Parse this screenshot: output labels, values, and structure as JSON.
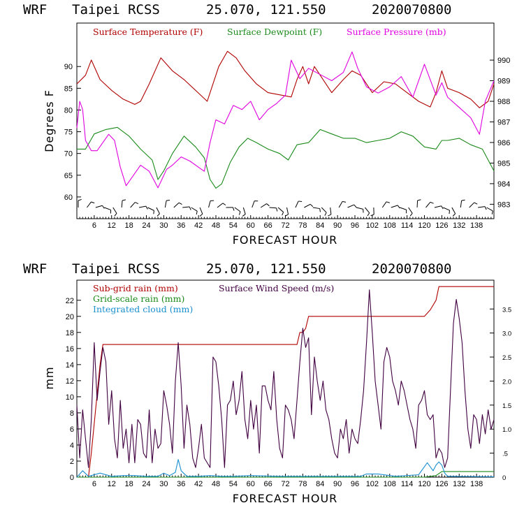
{
  "chart_data": [
    {
      "type": "line",
      "header": {
        "model": "WRF",
        "station": "Taipei RCSS",
        "coords": "25.070, 121.550",
        "run": "2020070800"
      },
      "xlabel": "FORECAST HOUR",
      "ylabel": "Degrees F",
      "xlim": [
        0,
        144
      ],
      "ylim": [
        55,
        100
      ],
      "y2lim": [
        982.3,
        991.8
      ],
      "x_ticks": [
        6,
        12,
        18,
        24,
        30,
        36,
        42,
        48,
        54,
        60,
        66,
        72,
        78,
        84,
        90,
        96,
        102,
        108,
        114,
        120,
        126,
        132,
        138
      ],
      "y_ticks": [
        60,
        65,
        70,
        75,
        80,
        85,
        90
      ],
      "y2_ticks": [
        983,
        984,
        985,
        986,
        987,
        988,
        989,
        990
      ],
      "legend": [
        "Surface Temperature (F)",
        "Surface Dewpoint (F)",
        "Surface Pressure (mb)"
      ],
      "colors": {
        "temperature": "#b00000",
        "dewpoint": "#1a8a1a",
        "pressure": "#e000e0",
        "barbs": "#000000"
      },
      "series": [
        {
          "name": "Surface Temperature (F)",
          "axis": "left",
          "x": [
            0,
            3,
            5,
            8,
            12,
            16,
            20,
            22,
            25,
            29,
            33,
            37,
            41,
            45,
            49,
            52,
            55,
            58,
            62,
            66,
            70,
            74,
            76,
            78,
            80,
            82,
            84,
            88,
            92,
            95,
            98,
            102,
            106,
            110,
            114,
            118,
            122,
            124,
            126,
            128,
            132,
            136,
            139,
            142,
            144
          ],
          "values": [
            86,
            88,
            91.5,
            87,
            84.5,
            82.5,
            81.3,
            82,
            86,
            92,
            89,
            87,
            84.5,
            82,
            90,
            93.5,
            92,
            89,
            86,
            84,
            83.5,
            83,
            87,
            90,
            86,
            90,
            88,
            84,
            87,
            89,
            88,
            84,
            86.5,
            86,
            84,
            82,
            80.7,
            84,
            89,
            85,
            84,
            82.5,
            80.5,
            82,
            86
          ]
        },
        {
          "name": "Surface Dewpoint (F)",
          "axis": "left",
          "x": [
            0,
            3,
            6,
            10,
            14,
            18,
            22,
            26,
            28,
            30,
            33,
            37,
            41,
            44,
            46,
            48,
            50,
            53,
            56,
            59,
            62,
            66,
            70,
            73,
            76,
            80,
            84,
            88,
            92,
            96,
            100,
            104,
            108,
            112,
            116,
            120,
            124,
            126,
            128,
            132,
            136,
            140,
            144
          ],
          "values": [
            71,
            71,
            74.5,
            75.5,
            76,
            74,
            71,
            68.5,
            64,
            66,
            70,
            74,
            71.5,
            69,
            64,
            62,
            63,
            68,
            71.5,
            73.5,
            72.5,
            71,
            70,
            68.5,
            72,
            72.5,
            75.5,
            74.5,
            73.5,
            73.5,
            72.5,
            73,
            73.5,
            75,
            74,
            71.5,
            71,
            73,
            73,
            73.5,
            72,
            71,
            66
          ]
        },
        {
          "name": "Surface Pressure (mb)",
          "axis": "right",
          "x": [
            0,
            1,
            2,
            3,
            5,
            7,
            9,
            11,
            13,
            15,
            17,
            19,
            22,
            25,
            28,
            31,
            33,
            36,
            39,
            42,
            44,
            46,
            48,
            51,
            54,
            57,
            60,
            63,
            66,
            69,
            72,
            74,
            77,
            80,
            84,
            88,
            92,
            95,
            97,
            100,
            104,
            108,
            112,
            116,
            120,
            124,
            126,
            128,
            132,
            136,
            139,
            141,
            144
          ],
          "values": [
            986.7,
            988,
            987.6,
            986.1,
            985.6,
            985.6,
            986,
            986.4,
            986.1,
            984.8,
            983.9,
            984.3,
            984.9,
            984.6,
            983.8,
            984.7,
            984.9,
            985.3,
            985.1,
            984.8,
            984.6,
            986,
            987.1,
            986.9,
            987.8,
            987.6,
            988,
            987.1,
            987.6,
            987.9,
            988.3,
            990,
            989.1,
            989.6,
            989.3,
            989,
            989.4,
            990.4,
            989.6,
            988.7,
            988.4,
            988.7,
            989.2,
            988.2,
            989.8,
            988.3,
            988.9,
            988.2,
            987.7,
            987.2,
            986.4,
            988,
            989
          ]
        }
      ],
      "wind_barbs_hours": [
        0,
        3,
        6,
        9,
        12,
        15,
        18,
        21,
        24,
        27,
        30,
        33,
        36,
        39,
        42,
        45,
        48,
        51,
        54,
        57,
        60,
        63,
        66,
        69,
        72,
        75,
        78,
        81,
        84,
        87,
        90,
        93,
        96,
        99,
        102,
        105,
        108,
        111,
        114,
        117,
        120,
        123,
        126,
        129,
        132,
        135,
        138,
        141
      ]
    },
    {
      "type": "line",
      "header": {
        "model": "WRF",
        "station": "Taipei RCSS",
        "coords": "25.070, 121.550",
        "run": "2020070800"
      },
      "xlabel": "FORECAST HOUR",
      "ylabel": "mm",
      "xlim": [
        0,
        144
      ],
      "ylim": [
        0,
        24.5
      ],
      "y2lim": [
        0,
        4.1
      ],
      "x_ticks": [
        6,
        12,
        18,
        24,
        30,
        36,
        42,
        48,
        54,
        60,
        66,
        72,
        78,
        84,
        90,
        96,
        102,
        108,
        114,
        120,
        126,
        132,
        138
      ],
      "y_ticks": [
        0,
        2,
        4,
        6,
        8,
        10,
        12,
        14,
        16,
        18,
        20,
        22
      ],
      "y2_ticks": [
        "0",
        ".5",
        "1.0",
        "1.5",
        "2.0",
        "2.5",
        "3.0",
        "3.5"
      ],
      "legend": [
        "Sub-grid rain (mm)",
        "Surface Wind Speed (m/s)",
        "Grid-scale rain (mm)",
        "Integrated cloud (mm)"
      ],
      "colors": {
        "subgrid": "#b00000",
        "wind": "#400040",
        "gridscale": "#1a8a1a",
        "cloud": "#1a90d0"
      },
      "series": [
        {
          "name": "Sub-grid rain (mm)",
          "axis": "left",
          "x": [
            0,
            4,
            5,
            8,
            9,
            76,
            77,
            78,
            79,
            80,
            81,
            120,
            122,
            124,
            125,
            144
          ],
          "values": [
            0,
            0,
            3,
            14,
            16.5,
            16.5,
            18,
            18,
            18.5,
            20,
            20,
            20,
            20.8,
            22,
            23.7,
            23.7
          ]
        },
        {
          "name": "Grid-scale rain (mm)",
          "axis": "left",
          "x": [
            0,
            120,
            124,
            126,
            144
          ],
          "values": [
            0,
            0,
            0.2,
            0.7,
            0.7
          ]
        },
        {
          "name": "Integrated cloud (mm)",
          "axis": "left",
          "x": [
            0,
            2,
            4,
            8,
            12,
            16,
            20,
            24,
            28,
            30,
            32,
            34,
            35,
            36,
            38,
            42,
            46,
            50,
            54,
            60,
            70,
            80,
            90,
            98,
            100,
            104,
            110,
            118,
            121,
            123,
            124,
            125,
            126,
            127,
            128,
            129,
            144
          ],
          "values": [
            0,
            0.8,
            0.1,
            0.5,
            0.1,
            0.2,
            0.2,
            0.1,
            0.1,
            0.5,
            0.2,
            0.6,
            2.2,
            0.8,
            0.1,
            0.1,
            0.2,
            0.1,
            0.1,
            0.2,
            0.1,
            0.1,
            0.1,
            0.1,
            0.4,
            0.4,
            0.1,
            0.3,
            1.8,
            0.8,
            1.5,
            1.9,
            1.5,
            0.5,
            0.1,
            0.1,
            0.05
          ]
        },
        {
          "name": "Surface Wind Speed (m/s)",
          "axis": "right",
          "x": [
            0,
            1,
            2,
            3,
            4,
            5,
            6,
            7,
            8,
            9,
            10,
            11,
            12,
            13,
            14,
            15,
            16,
            17,
            18,
            19,
            20,
            21,
            22,
            23,
            24,
            25,
            26,
            27,
            28,
            29,
            30,
            31,
            32,
            33,
            34,
            35,
            36,
            37,
            38,
            39,
            40,
            41,
            42,
            43,
            44,
            45,
            46,
            47,
            48,
            49,
            50,
            51,
            52,
            53,
            54,
            55,
            56,
            57,
            58,
            59,
            60,
            61,
            62,
            63,
            64,
            65,
            66,
            67,
            68,
            69,
            70,
            71,
            72,
            73,
            74,
            75,
            76,
            77,
            78,
            79,
            80,
            81,
            82,
            83,
            84,
            85,
            86,
            87,
            88,
            89,
            90,
            91,
            92,
            93,
            94,
            95,
            96,
            97,
            98,
            99,
            100,
            101,
            102,
            103,
            104,
            105,
            106,
            107,
            108,
            109,
            110,
            111,
            112,
            113,
            114,
            115,
            116,
            117,
            118,
            119,
            120,
            121,
            122,
            123,
            124,
            125,
            126,
            127,
            128,
            129,
            130,
            131,
            132,
            133,
            134,
            135,
            136,
            137,
            138,
            139,
            140,
            141,
            142,
            143,
            144
          ],
          "values": [
            1.5,
            0.4,
            1.4,
            0.8,
            0.2,
            1.2,
            2.8,
            1.6,
            2.2,
            2.7,
            2.4,
            1.1,
            1.8,
            0.8,
            0.4,
            1.6,
            0.6,
            1.0,
            0.3,
            1.1,
            0.3,
            1.2,
            1.1,
            0.5,
            0.4,
            1.4,
            0.3,
            1.0,
            0.6,
            0.7,
            1.8,
            1.5,
            1.1,
            0.5,
            2.0,
            2.8,
            1.9,
            0.6,
            1.5,
            1.1,
            0.4,
            0.2,
            0.6,
            1.1,
            0.4,
            0.3,
            0.2,
            2.5,
            2.4,
            1.9,
            1.2,
            0.2,
            1.5,
            1.6,
            2.0,
            1.3,
            1.6,
            2.2,
            1.2,
            0.8,
            1.6,
            1.0,
            1.5,
            0.5,
            1.9,
            1.9,
            1.6,
            1.4,
            2.2,
            1.2,
            0.6,
            0.4,
            1.5,
            1.4,
            1.2,
            0.8,
            1.6,
            2.4,
            3.1,
            2.7,
            2.9,
            1.3,
            2.5,
            2.0,
            1.6,
            2.0,
            1.4,
            1.2,
            0.8,
            0.5,
            0.4,
            1.0,
            0.8,
            1.2,
            0.5,
            1.0,
            0.8,
            0.7,
            1.2,
            1.8,
            2.8,
            3.9,
            3.0,
            2.0,
            1.5,
            1.0,
            2.4,
            2.7,
            2.5,
            2.0,
            1.8,
            1.5,
            2.0,
            1.8,
            1.5,
            1.2,
            1.0,
            0.6,
            1.5,
            1.6,
            1.8,
            1.3,
            1.2,
            1.3,
            0.4,
            0.6,
            0.5,
            0.2,
            0.4,
            1.8,
            3.2,
            3.7,
            3.3,
            2.8,
            1.8,
            1.0,
            0.6,
            1.3,
            1.2,
            0.7,
            1.3,
            0.9,
            1.4,
            1.0,
            1.2
          ]
        }
      ]
    }
  ]
}
